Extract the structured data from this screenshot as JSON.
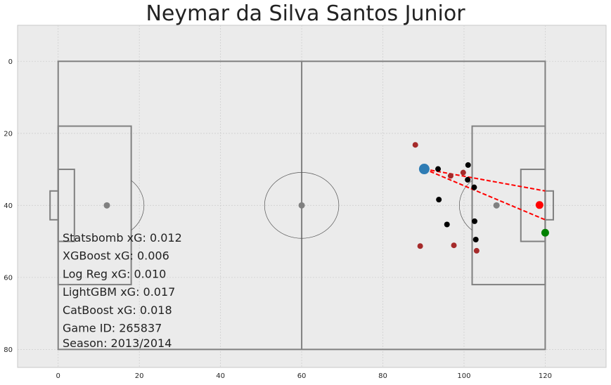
{
  "title": "Neymar da Silva Santos Junior",
  "chart_data": {
    "type": "scatter",
    "xlim": [
      -10,
      135
    ],
    "ylim": [
      85,
      -10
    ],
    "grid": true,
    "x_ticks": [
      0,
      20,
      40,
      60,
      80,
      100,
      120
    ],
    "y_ticks": [
      0,
      20,
      40,
      60,
      80
    ],
    "colors": {
      "background": "#ebebeb",
      "pitch_lines": "#808080",
      "shooter": "#2e7cb4",
      "teammate": "#a52a2a",
      "opponent": "#000000",
      "goalkeeper": "#008000",
      "end_location": "#ff0000",
      "penalty_spot": "#808080",
      "shot_lines": "#ff0000"
    },
    "shooter": {
      "x": 90.2,
      "y": 29.9
    },
    "shot_end": {
      "x": 118.6,
      "y": 39.9
    },
    "goalkeeper": {
      "x": 120.0,
      "y": 47.6
    },
    "teammates": [
      {
        "x": 88.0,
        "y": 23.2
      },
      {
        "x": 89.2,
        "y": 51.3
      },
      {
        "x": 96.7,
        "y": 31.8
      },
      {
        "x": 99.8,
        "y": 30.9
      },
      {
        "x": 97.5,
        "y": 51.1
      },
      {
        "x": 103.1,
        "y": 52.6
      }
    ],
    "opponents": [
      {
        "x": 93.6,
        "y": 29.9
      },
      {
        "x": 93.8,
        "y": 38.4
      },
      {
        "x": 95.8,
        "y": 45.3
      },
      {
        "x": 101.0,
        "y": 28.8
      },
      {
        "x": 100.9,
        "y": 32.9
      },
      {
        "x": 102.5,
        "y": 35.0
      },
      {
        "x": 102.6,
        "y": 44.4
      },
      {
        "x": 102.9,
        "y": 49.5
      }
    ],
    "penalty_spots": [
      {
        "x": 12,
        "y": 40
      },
      {
        "x": 60,
        "y": 40
      },
      {
        "x": 108,
        "y": 40
      }
    ],
    "shot_lines": [
      {
        "from": {
          "x": 90.2,
          "y": 29.9
        },
        "to": {
          "x": 120,
          "y": 36
        }
      },
      {
        "from": {
          "x": 90.2,
          "y": 29.9
        },
        "to": {
          "x": 120,
          "y": 44
        }
      }
    ],
    "annotations": [
      "Statsbomb xG: 0.012",
      "XGBoost xG: 0.006",
      "Log Reg xG: 0.010",
      "LightGBM xG: 0.017",
      "CatBoost xG: 0.018",
      "Game ID: 265837",
      "Season: 2013/2014"
    ]
  }
}
